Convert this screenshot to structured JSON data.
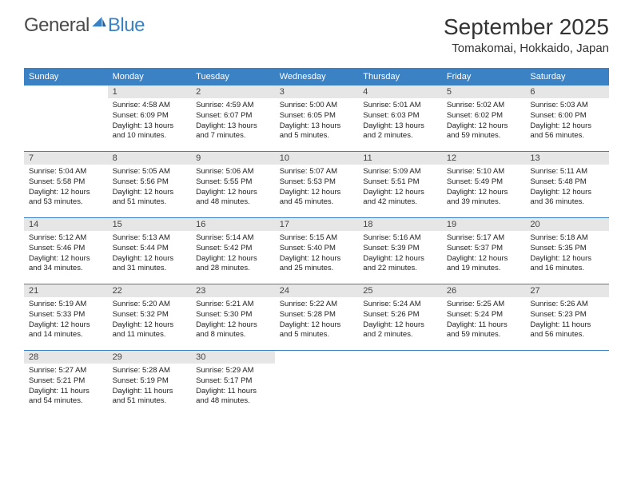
{
  "brand": {
    "part1": "General",
    "part2": "Blue"
  },
  "title": "September 2025",
  "location": "Tomakomai, Hokkaido, Japan",
  "header_bg": "#3b82c4",
  "header_fg": "#ffffff",
  "daynum_bg": "#e6e6e6",
  "row_border": "#3b82c4",
  "weekdays": [
    "Sunday",
    "Monday",
    "Tuesday",
    "Wednesday",
    "Thursday",
    "Friday",
    "Saturday"
  ],
  "weeks": [
    [
      {
        "n": "",
        "sr": "",
        "ss": "",
        "dl": ""
      },
      {
        "n": "1",
        "sr": "Sunrise: 4:58 AM",
        "ss": "Sunset: 6:09 PM",
        "dl": "Daylight: 13 hours and 10 minutes."
      },
      {
        "n": "2",
        "sr": "Sunrise: 4:59 AM",
        "ss": "Sunset: 6:07 PM",
        "dl": "Daylight: 13 hours and 7 minutes."
      },
      {
        "n": "3",
        "sr": "Sunrise: 5:00 AM",
        "ss": "Sunset: 6:05 PM",
        "dl": "Daylight: 13 hours and 5 minutes."
      },
      {
        "n": "4",
        "sr": "Sunrise: 5:01 AM",
        "ss": "Sunset: 6:03 PM",
        "dl": "Daylight: 13 hours and 2 minutes."
      },
      {
        "n": "5",
        "sr": "Sunrise: 5:02 AM",
        "ss": "Sunset: 6:02 PM",
        "dl": "Daylight: 12 hours and 59 minutes."
      },
      {
        "n": "6",
        "sr": "Sunrise: 5:03 AM",
        "ss": "Sunset: 6:00 PM",
        "dl": "Daylight: 12 hours and 56 minutes."
      }
    ],
    [
      {
        "n": "7",
        "sr": "Sunrise: 5:04 AM",
        "ss": "Sunset: 5:58 PM",
        "dl": "Daylight: 12 hours and 53 minutes."
      },
      {
        "n": "8",
        "sr": "Sunrise: 5:05 AM",
        "ss": "Sunset: 5:56 PM",
        "dl": "Daylight: 12 hours and 51 minutes."
      },
      {
        "n": "9",
        "sr": "Sunrise: 5:06 AM",
        "ss": "Sunset: 5:55 PM",
        "dl": "Daylight: 12 hours and 48 minutes."
      },
      {
        "n": "10",
        "sr": "Sunrise: 5:07 AM",
        "ss": "Sunset: 5:53 PM",
        "dl": "Daylight: 12 hours and 45 minutes."
      },
      {
        "n": "11",
        "sr": "Sunrise: 5:09 AM",
        "ss": "Sunset: 5:51 PM",
        "dl": "Daylight: 12 hours and 42 minutes."
      },
      {
        "n": "12",
        "sr": "Sunrise: 5:10 AM",
        "ss": "Sunset: 5:49 PM",
        "dl": "Daylight: 12 hours and 39 minutes."
      },
      {
        "n": "13",
        "sr": "Sunrise: 5:11 AM",
        "ss": "Sunset: 5:48 PM",
        "dl": "Daylight: 12 hours and 36 minutes."
      }
    ],
    [
      {
        "n": "14",
        "sr": "Sunrise: 5:12 AM",
        "ss": "Sunset: 5:46 PM",
        "dl": "Daylight: 12 hours and 34 minutes."
      },
      {
        "n": "15",
        "sr": "Sunrise: 5:13 AM",
        "ss": "Sunset: 5:44 PM",
        "dl": "Daylight: 12 hours and 31 minutes."
      },
      {
        "n": "16",
        "sr": "Sunrise: 5:14 AM",
        "ss": "Sunset: 5:42 PM",
        "dl": "Daylight: 12 hours and 28 minutes."
      },
      {
        "n": "17",
        "sr": "Sunrise: 5:15 AM",
        "ss": "Sunset: 5:40 PM",
        "dl": "Daylight: 12 hours and 25 minutes."
      },
      {
        "n": "18",
        "sr": "Sunrise: 5:16 AM",
        "ss": "Sunset: 5:39 PM",
        "dl": "Daylight: 12 hours and 22 minutes."
      },
      {
        "n": "19",
        "sr": "Sunrise: 5:17 AM",
        "ss": "Sunset: 5:37 PM",
        "dl": "Daylight: 12 hours and 19 minutes."
      },
      {
        "n": "20",
        "sr": "Sunrise: 5:18 AM",
        "ss": "Sunset: 5:35 PM",
        "dl": "Daylight: 12 hours and 16 minutes."
      }
    ],
    [
      {
        "n": "21",
        "sr": "Sunrise: 5:19 AM",
        "ss": "Sunset: 5:33 PM",
        "dl": "Daylight: 12 hours and 14 minutes."
      },
      {
        "n": "22",
        "sr": "Sunrise: 5:20 AM",
        "ss": "Sunset: 5:32 PM",
        "dl": "Daylight: 12 hours and 11 minutes."
      },
      {
        "n": "23",
        "sr": "Sunrise: 5:21 AM",
        "ss": "Sunset: 5:30 PM",
        "dl": "Daylight: 12 hours and 8 minutes."
      },
      {
        "n": "24",
        "sr": "Sunrise: 5:22 AM",
        "ss": "Sunset: 5:28 PM",
        "dl": "Daylight: 12 hours and 5 minutes."
      },
      {
        "n": "25",
        "sr": "Sunrise: 5:24 AM",
        "ss": "Sunset: 5:26 PM",
        "dl": "Daylight: 12 hours and 2 minutes."
      },
      {
        "n": "26",
        "sr": "Sunrise: 5:25 AM",
        "ss": "Sunset: 5:24 PM",
        "dl": "Daylight: 11 hours and 59 minutes."
      },
      {
        "n": "27",
        "sr": "Sunrise: 5:26 AM",
        "ss": "Sunset: 5:23 PM",
        "dl": "Daylight: 11 hours and 56 minutes."
      }
    ],
    [
      {
        "n": "28",
        "sr": "Sunrise: 5:27 AM",
        "ss": "Sunset: 5:21 PM",
        "dl": "Daylight: 11 hours and 54 minutes."
      },
      {
        "n": "29",
        "sr": "Sunrise: 5:28 AM",
        "ss": "Sunset: 5:19 PM",
        "dl": "Daylight: 11 hours and 51 minutes."
      },
      {
        "n": "30",
        "sr": "Sunrise: 5:29 AM",
        "ss": "Sunset: 5:17 PM",
        "dl": "Daylight: 11 hours and 48 minutes."
      },
      {
        "n": "",
        "sr": "",
        "ss": "",
        "dl": ""
      },
      {
        "n": "",
        "sr": "",
        "ss": "",
        "dl": ""
      },
      {
        "n": "",
        "sr": "",
        "ss": "",
        "dl": ""
      },
      {
        "n": "",
        "sr": "",
        "ss": "",
        "dl": ""
      }
    ]
  ]
}
